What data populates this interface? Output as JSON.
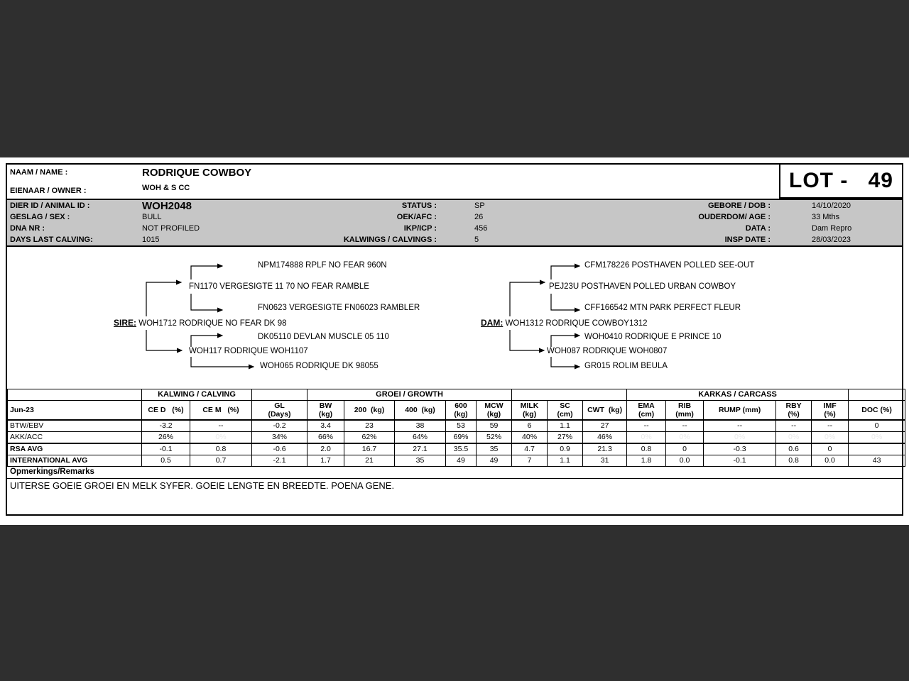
{
  "header": {
    "name_label": "NAAM / NAME :",
    "name_value": "RODRIQUE COWBOY",
    "owner_label": "EIENAAR / OWNER :",
    "owner_value": "WOH & S CC",
    "lot_label": "LOT -",
    "lot_number": "49",
    "info_rows": [
      {
        "label": "DIER ID / ANIMAL ID :",
        "value": "WOH2048",
        "mid_label": "STATUS :",
        "mid_value": "SP",
        "right_label": "GEBORE / DOB :",
        "right_value": "14/10/2020"
      },
      {
        "label": "GESLAG / SEX :",
        "value": "BULL",
        "mid_label": "OEK/AFC :",
        "mid_value": "26",
        "right_label": "OUDERDOM/ AGE :",
        "right_value": "33 Mths"
      },
      {
        "label": "DNA NR :",
        "value": "NOT PROFILED",
        "mid_label": "IKP/ICP :",
        "mid_value": "456",
        "right_label": "DATA :",
        "right_value": "Dam Repro"
      },
      {
        "label": "DAYS LAST CALVING:",
        "value": "1015",
        "mid_label": "KALWINGS / CALVINGS :",
        "mid_value": "5",
        "right_label": "INSP DATE :",
        "right_value": "28/03/2023"
      }
    ]
  },
  "pedigree": {
    "sire_label": "SIRE:",
    "sire": "WOH1712 RODRIQUE NO FEAR DK 98",
    "sire_sire": "FN1170 VERGESIGTE 11 70 NO FEAR RAMBLE",
    "sire_sire_sire": "NPM174888 RPLF NO FEAR 960N",
    "sire_sire_dam": "FN0623 VERGESIGTE FN06023 RAMBLER",
    "sire_dam": "WOH117 RODRIQUE WOH1107",
    "sire_dam_sire": "DK05110 DEVLAN MUSCLE 05 110",
    "sire_dam_dam": "WOH065 RODRIQUE DK 98055",
    "dam_label": "DAM:",
    "dam": "WOH1312 RODRIQUE COWBOY1312",
    "dam_sire": "PEJ23U POSTHAVEN POLLED URBAN COWBOY",
    "dam_sire_sire": "CFM178226 POSTHAVEN POLLED SEE-OUT",
    "dam_sire_dam": "CFF166542 MTN PARK PERFECT FLEUR",
    "dam_dam": "WOH087 RODRIQUE WOH0807",
    "dam_dam_sire": "WOH0410 RODRIQUE E PRINCE 10",
    "dam_dam_dam": "GR015 ROLIM BEULA"
  },
  "table": {
    "date_label": "Jun-23",
    "group_calving": "KALWING / CALVING",
    "group_growth": "GROEI / GROWTH",
    "group_carcass": "KARKAS /  CARCASS",
    "columns": [
      "CE D   (%)",
      "CE M   (%)",
      "GL\n(Days)",
      "BW\n(kg)",
      "200  (kg)",
      "400  (kg)",
      "600\n(kg)",
      "MCW\n(kg)",
      "MILK\n(kg)",
      "SC\n(cm)",
      "CWT  (kg)",
      "EMA\n(cm)",
      "RIB\n(mm)",
      "RUMP (mm)",
      "RBY\n(%)",
      "IMF\n(%)",
      "DOC (%)"
    ],
    "rows": [
      {
        "label": "BTW/EBV",
        "bold": false,
        "thick_bottom": false,
        "faint_indices": [],
        "values": [
          "-3.2",
          "--",
          "-0.2",
          "3.4",
          "23",
          "38",
          "53",
          "59",
          "6",
          "1.1",
          "27",
          "--",
          "--",
          "--",
          "--",
          "--",
          "0"
        ]
      },
      {
        "label": "AKK/ACC",
        "bold": false,
        "thick_bottom": true,
        "faint_indices": [
          1,
          11,
          12,
          13,
          14,
          15,
          16
        ],
        "values": [
          "26%",
          "0%",
          "34%",
          "66%",
          "62%",
          "64%",
          "69%",
          "52%",
          "40%",
          "27%",
          "46%",
          "0%",
          "0%",
          "0%",
          "0%",
          "0%",
          "0%"
        ]
      },
      {
        "label": "RSA AVG",
        "bold": true,
        "thick_bottom": false,
        "faint_indices": [],
        "values": [
          "-0.1",
          "0.8",
          "-0.6",
          "2.0",
          "16.7",
          "27.1",
          "35.5",
          "35",
          "4.7",
          "0.9",
          "21.3",
          "0.8",
          "0",
          "-0.3",
          "0.6",
          "0",
          ""
        ]
      },
      {
        "label": "INTERNATIONAL AVG",
        "bold": true,
        "thick_bottom": false,
        "faint_indices": [],
        "values": [
          "0.5",
          "0.7",
          "-2.1",
          "1.7",
          "21",
          "35",
          "49",
          "49",
          "7",
          "1.1",
          "31",
          "1.8",
          "0.0",
          "-0.1",
          "0.8",
          "0.0",
          "43"
        ]
      }
    ]
  },
  "remarks": {
    "label": "Opmerkings/Remarks",
    "text": "UITERSE GOEIE GROEI EN MELK SYFER. GOEIE LENGTE EN BREEDTE. POENA GENE."
  }
}
